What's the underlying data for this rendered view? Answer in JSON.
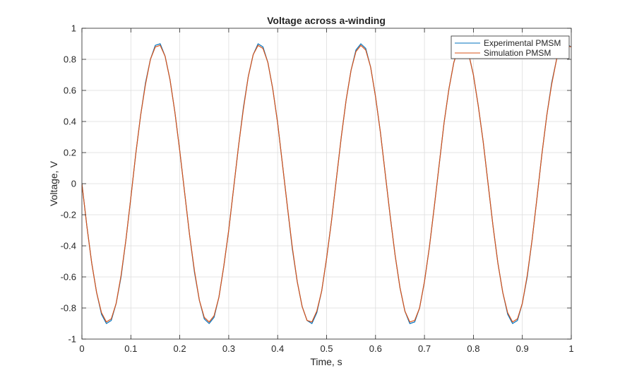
{
  "chart_data": {
    "type": "line",
    "title": "Voltage across a-winding",
    "xlabel": "Time, s",
    "ylabel": "Voltage, V",
    "xlim": [
      0,
      1
    ],
    "ylim": [
      -1,
      1
    ],
    "xticks": [
      0,
      0.1,
      0.2,
      0.3,
      0.4,
      0.5,
      0.6,
      0.7,
      0.8,
      0.9,
      1
    ],
    "xtick_labels": [
      "0",
      "0.1",
      "0.2",
      "0.3",
      "0.4",
      "0.5",
      "0.6",
      "0.7",
      "0.8",
      "0.9",
      "1"
    ],
    "yticks": [
      -1,
      -0.8,
      -0.6,
      -0.4,
      -0.2,
      0,
      0.2,
      0.4,
      0.6,
      0.8,
      1
    ],
    "ytick_labels": [
      "-1",
      "-0.8",
      "-0.6",
      "-0.4",
      "-0.2",
      "0",
      "0.2",
      "0.4",
      "0.6",
      "0.8",
      "1"
    ],
    "grid": true,
    "legend_position": "top-right",
    "series": [
      {
        "name": "Experimental PMSM",
        "color": "#0072BD",
        "x": [
          0,
          0.01,
          0.02,
          0.03,
          0.04,
          0.05,
          0.06,
          0.07,
          0.08,
          0.09,
          0.1,
          0.11,
          0.12,
          0.13,
          0.14,
          0.15,
          0.16,
          0.17,
          0.18,
          0.19,
          0.2,
          0.21,
          0.22,
          0.23,
          0.24,
          0.25,
          0.26,
          0.27,
          0.28,
          0.29,
          0.3,
          0.31,
          0.32,
          0.33,
          0.34,
          0.35,
          0.36,
          0.37,
          0.38,
          0.39,
          0.4,
          0.41,
          0.42,
          0.43,
          0.44,
          0.45,
          0.46,
          0.47,
          0.48,
          0.49,
          0.5,
          0.51,
          0.52,
          0.53,
          0.54,
          0.55,
          0.56,
          0.57,
          0.58,
          0.59,
          0.6,
          0.61,
          0.62,
          0.63,
          0.64,
          0.65,
          0.66,
          0.67,
          0.68,
          0.69,
          0.7,
          0.71,
          0.72,
          0.73,
          0.74,
          0.75,
          0.76,
          0.77,
          0.78,
          0.79,
          0.8,
          0.81,
          0.82,
          0.83,
          0.84,
          0.85,
          0.86,
          0.87,
          0.88,
          0.89,
          0.9,
          0.91,
          0.92,
          0.93,
          0.94,
          0.95,
          0.96,
          0.97,
          0.98,
          0.99,
          1
        ],
        "y": [
          0,
          -0.27,
          -0.51,
          -0.7,
          -0.84,
          -0.9,
          -0.88,
          -0.77,
          -0.6,
          -0.36,
          -0.09,
          0.19,
          0.44,
          0.65,
          0.8,
          0.89,
          0.9,
          0.82,
          0.67,
          0.46,
          0.21,
          -0.06,
          -0.33,
          -0.57,
          -0.75,
          -0.87,
          -0.9,
          -0.86,
          -0.73,
          -0.53,
          -0.3,
          -0.03,
          0.24,
          0.49,
          0.69,
          0.83,
          0.9,
          0.88,
          0.78,
          0.61,
          0.39,
          0.12,
          -0.15,
          -0.42,
          -0.63,
          -0.79,
          -0.88,
          -0.9,
          -0.83,
          -0.69,
          -0.48,
          -0.24,
          0.03,
          0.3,
          0.54,
          0.73,
          0.86,
          0.9,
          0.87,
          0.75,
          0.56,
          0.33,
          0.06,
          -0.21,
          -0.46,
          -0.67,
          -0.82,
          -0.9,
          -0.89,
          -0.8,
          -0.63,
          -0.41,
          -0.15,
          0.12,
          0.39,
          0.61,
          0.78,
          0.88,
          0.9,
          0.84,
          0.7,
          0.5,
          0.27,
          0,
          -0.27,
          -0.51,
          -0.7,
          -0.84,
          -0.9,
          -0.88,
          -0.77,
          -0.6,
          -0.36,
          -0.09,
          0.19,
          0.44,
          0.65,
          0.8,
          0.89,
          0.9,
          0.88
        ]
      },
      {
        "name": "Simulation PMSM",
        "color": "#D95319",
        "x": [
          0,
          0.01,
          0.02,
          0.03,
          0.04,
          0.05,
          0.06,
          0.07,
          0.08,
          0.09,
          0.1,
          0.11,
          0.12,
          0.13,
          0.14,
          0.15,
          0.16,
          0.17,
          0.18,
          0.19,
          0.2,
          0.21,
          0.22,
          0.23,
          0.24,
          0.25,
          0.26,
          0.27,
          0.28,
          0.29,
          0.3,
          0.31,
          0.32,
          0.33,
          0.34,
          0.35,
          0.36,
          0.37,
          0.38,
          0.39,
          0.4,
          0.41,
          0.42,
          0.43,
          0.44,
          0.45,
          0.46,
          0.47,
          0.48,
          0.49,
          0.5,
          0.51,
          0.52,
          0.53,
          0.54,
          0.55,
          0.56,
          0.57,
          0.58,
          0.59,
          0.6,
          0.61,
          0.62,
          0.63,
          0.64,
          0.65,
          0.66,
          0.67,
          0.68,
          0.69,
          0.7,
          0.71,
          0.72,
          0.73,
          0.74,
          0.75,
          0.76,
          0.77,
          0.78,
          0.79,
          0.8,
          0.81,
          0.82,
          0.83,
          0.84,
          0.85,
          0.86,
          0.87,
          0.88,
          0.89,
          0.9,
          0.91,
          0.92,
          0.93,
          0.94,
          0.95,
          0.96,
          0.97,
          0.98,
          0.99,
          1
        ],
        "y": [
          0,
          -0.27,
          -0.51,
          -0.7,
          -0.83,
          -0.89,
          -0.87,
          -0.77,
          -0.59,
          -0.36,
          -0.09,
          0.19,
          0.44,
          0.64,
          0.8,
          0.88,
          0.89,
          0.82,
          0.67,
          0.46,
          0.21,
          -0.06,
          -0.33,
          -0.56,
          -0.75,
          -0.86,
          -0.89,
          -0.85,
          -0.73,
          -0.53,
          -0.3,
          -0.03,
          0.24,
          0.48,
          0.69,
          0.83,
          0.89,
          0.87,
          0.78,
          0.61,
          0.39,
          0.12,
          -0.15,
          -0.41,
          -0.63,
          -0.79,
          -0.88,
          -0.89,
          -0.82,
          -0.69,
          -0.48,
          -0.24,
          0.03,
          0.3,
          0.54,
          0.73,
          0.85,
          0.89,
          0.86,
          0.75,
          0.56,
          0.33,
          0.06,
          -0.21,
          -0.46,
          -0.67,
          -0.82,
          -0.89,
          -0.88,
          -0.8,
          -0.63,
          -0.41,
          -0.15,
          0.12,
          0.39,
          0.61,
          0.78,
          0.88,
          0.89,
          0.84,
          0.7,
          0.5,
          0.27,
          0,
          -0.27,
          -0.51,
          -0.7,
          -0.83,
          -0.89,
          -0.87,
          -0.77,
          -0.59,
          -0.36,
          -0.09,
          0.19,
          0.44,
          0.64,
          0.8,
          0.88,
          0.89,
          0.88
        ]
      }
    ]
  }
}
